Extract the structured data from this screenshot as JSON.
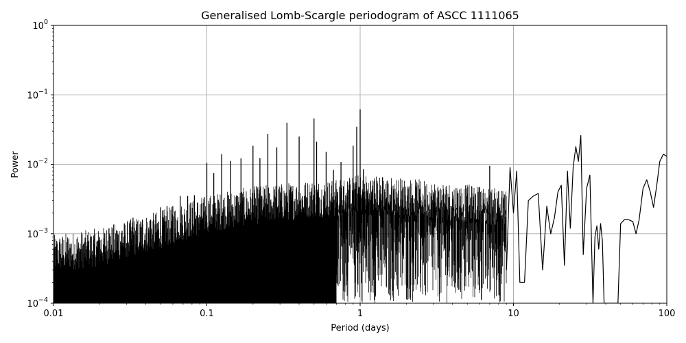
{
  "chart_data": {
    "type": "line",
    "title": "Generalised Lomb-Scargle periodogram of ASCC 1111065",
    "xlabel": "Period (days)",
    "ylabel": "Power",
    "xscale": "log",
    "yscale": "log",
    "xlim": [
      0.01,
      100
    ],
    "ylim": [
      0.0001,
      1
    ],
    "grid": true,
    "x_ticks": [
      {
        "value": 0.01,
        "label": "0.01"
      },
      {
        "value": 0.1,
        "label": "0.1"
      },
      {
        "value": 1,
        "label": "1"
      },
      {
        "value": 10,
        "label": "10"
      },
      {
        "value": 100,
        "label": "100"
      }
    ],
    "y_ticks": [
      {
        "value": 0.0001,
        "base": "10",
        "exp": "−4"
      },
      {
        "value": 0.001,
        "base": "10",
        "exp": "−3"
      },
      {
        "value": 0.01,
        "base": "10",
        "exp": "−2"
      },
      {
        "value": 0.1,
        "base": "10",
        "exp": "−1"
      },
      {
        "value": 1,
        "base": "10",
        "exp": "0"
      }
    ],
    "series": [
      {
        "color": "#000000",
        "band_envelope": {
          "x": [
            0.01,
            0.02,
            0.05,
            0.1,
            0.2,
            0.3,
            0.5,
            0.7,
            1
          ],
          "y": [
            0.0004,
            0.0005,
            0.0009,
            0.0015,
            0.002,
            0.0022,
            0.0025,
            0.0025,
            0.003
          ]
        },
        "peaks": [
          {
            "x": 0.011,
            "y": 0.0006
          },
          {
            "x": 0.013,
            "y": 0.0007
          },
          {
            "x": 0.015,
            "y": 0.0006
          },
          {
            "x": 0.017,
            "y": 0.0008
          },
          {
            "x": 0.02,
            "y": 0.0009
          },
          {
            "x": 0.023,
            "y": 0.0012
          },
          {
            "x": 0.026,
            "y": 0.0011
          },
          {
            "x": 0.028,
            "y": 0.0011
          },
          {
            "x": 0.033,
            "y": 0.0017
          },
          {
            "x": 0.038,
            "y": 0.0016
          },
          {
            "x": 0.043,
            "y": 0.0016
          },
          {
            "x": 0.05,
            "y": 0.0024
          },
          {
            "x": 0.055,
            "y": 0.0025
          },
          {
            "x": 0.06,
            "y": 0.0025
          },
          {
            "x": 0.067,
            "y": 0.0035
          },
          {
            "x": 0.075,
            "y": 0.0035
          },
          {
            "x": 0.083,
            "y": 0.0036
          },
          {
            "x": 0.1,
            "y": 0.0105
          },
          {
            "x": 0.111,
            "y": 0.0075
          },
          {
            "x": 0.125,
            "y": 0.014
          },
          {
            "x": 0.143,
            "y": 0.0112
          },
          {
            "x": 0.167,
            "y": 0.0122
          },
          {
            "x": 0.2,
            "y": 0.0185
          },
          {
            "x": 0.222,
            "y": 0.0123
          },
          {
            "x": 0.25,
            "y": 0.0274
          },
          {
            "x": 0.286,
            "y": 0.0175
          },
          {
            "x": 0.333,
            "y": 0.0397
          },
          {
            "x": 0.4,
            "y": 0.0251
          },
          {
            "x": 0.5,
            "y": 0.0457
          },
          {
            "x": 0.52,
            "y": 0.0211
          },
          {
            "x": 0.6,
            "y": 0.0151
          },
          {
            "x": 0.67,
            "y": 0.0083
          },
          {
            "x": 0.75,
            "y": 0.0108
          },
          {
            "x": 0.9,
            "y": 0.0185
          },
          {
            "x": 0.95,
            "y": 0.0347
          },
          {
            "x": 1.0,
            "y": 0.0617
          },
          {
            "x": 1.05,
            "y": 0.0085
          },
          {
            "x": 1.2,
            "y": 0.0049
          },
          {
            "x": 1.4,
            "y": 0.0065
          },
          {
            "x": 1.6,
            "y": 0.0045
          },
          {
            "x": 2.2,
            "y": 0.0036
          },
          {
            "x": 2.5,
            "y": 0.0025
          },
          {
            "x": 3.0,
            "y": 0.0027
          },
          {
            "x": 4.0,
            "y": 0.0032
          },
          {
            "x": 5.0,
            "y": 0.0025
          },
          {
            "x": 6.0,
            "y": 0.0047
          },
          {
            "x": 7.0,
            "y": 0.0095
          },
          {
            "x": 8.0,
            "y": 0.0041
          }
        ],
        "curve_right": {
          "x": [
            9,
            9.5,
            10,
            10.5,
            11,
            11.8,
            12.5,
            13.5,
            14.5,
            15.5,
            16.5,
            17.5,
            18.5,
            19.5,
            20.5,
            21.5,
            22.5,
            23.5,
            24.5,
            25.5,
            26.5,
            27.5,
            28.5,
            30,
            31.5,
            33,
            34,
            35,
            36,
            37,
            38,
            39,
            40,
            41,
            42,
            43,
            44,
            45,
            46,
            47,
            48,
            50,
            53,
            56,
            60,
            63,
            66,
            70,
            74,
            78,
            82,
            86,
            90,
            95,
            100
          ],
          "y": [
            0.0003,
            0.009,
            0.002,
            0.008,
            0.0002,
            0.0002,
            0.003,
            0.0035,
            0.0038,
            0.0003,
            0.0025,
            0.001,
            0.0017,
            0.004,
            0.005,
            0.00035,
            0.008,
            0.0012,
            0.009,
            0.018,
            0.011,
            0.026,
            0.0005,
            0.0045,
            0.007,
            0.0001,
            0.0009,
            0.0013,
            0.0006,
            0.0014,
            0.0008,
            0.0001,
            0.0001,
            0.0001,
            0.0001,
            0.0001,
            0.0001,
            0.0001,
            0.0001,
            0.0001,
            0.0001,
            0.0014,
            0.0016,
            0.0016,
            0.0015,
            0.001,
            0.0016,
            0.0045,
            0.006,
            0.004,
            0.0024,
            0.005,
            0.011,
            0.014,
            0.013
          ]
        }
      }
    ]
  }
}
